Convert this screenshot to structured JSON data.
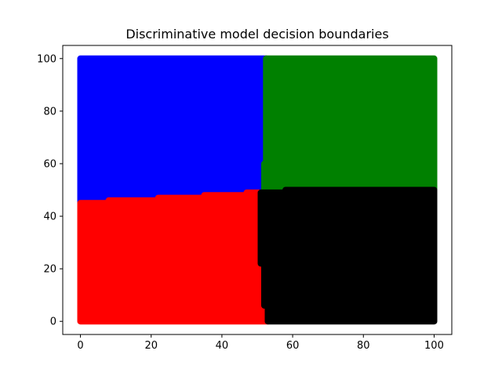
{
  "chart_data": {
    "type": "scatter",
    "title": "Discriminative model decision boundaries",
    "xlabel": "",
    "ylabel": "",
    "xlim": [
      -5,
      105
    ],
    "ylim": [
      -5,
      105
    ],
    "xticks": [
      0,
      20,
      40,
      60,
      80,
      100
    ],
    "yticks": [
      0,
      20,
      40,
      60,
      80,
      100
    ],
    "xtick_labels": [
      "0",
      "20",
      "40",
      "60",
      "80",
      "100"
    ],
    "ytick_labels": [
      "0",
      "20",
      "40",
      "60",
      "80",
      "100"
    ],
    "grid": false,
    "legend": "none",
    "series": [
      {
        "color": "#0000ff",
        "region": [
          [
            0,
            100
          ],
          [
            52.5,
            100
          ],
          [
            52.5,
            60
          ],
          [
            52,
            60
          ],
          [
            52,
            49
          ],
          [
            47,
            49
          ],
          [
            47,
            48
          ],
          [
            35,
            48
          ],
          [
            35,
            47
          ],
          [
            22,
            47
          ],
          [
            22,
            46
          ],
          [
            8,
            46
          ],
          [
            8,
            45
          ],
          [
            0,
            45
          ]
        ]
      },
      {
        "color": "#008000",
        "region": [
          [
            52.5,
            100
          ],
          [
            100,
            100
          ],
          [
            100,
            49
          ],
          [
            58,
            49
          ],
          [
            58,
            50
          ],
          [
            52,
            50
          ],
          [
            52,
            60
          ],
          [
            52.5,
            60
          ]
        ]
      },
      {
        "color": "#ff0000",
        "region": [
          [
            0,
            45
          ],
          [
            8,
            45
          ],
          [
            8,
            46
          ],
          [
            22,
            46
          ],
          [
            22,
            47
          ],
          [
            35,
            47
          ],
          [
            35,
            48
          ],
          [
            47,
            48
          ],
          [
            47,
            49
          ],
          [
            51,
            49
          ],
          [
            51,
            22
          ],
          [
            52,
            22
          ],
          [
            52,
            6
          ],
          [
            53,
            6
          ],
          [
            53,
            0
          ],
          [
            0,
            0
          ]
        ]
      },
      {
        "color": "#000000",
        "region": [
          [
            51,
            49
          ],
          [
            58,
            49
          ],
          [
            58,
            50
          ],
          [
            100,
            50
          ],
          [
            100,
            0
          ],
          [
            53,
            0
          ],
          [
            53,
            6
          ],
          [
            52,
            6
          ],
          [
            52,
            22
          ],
          [
            51,
            22
          ]
        ]
      }
    ]
  }
}
